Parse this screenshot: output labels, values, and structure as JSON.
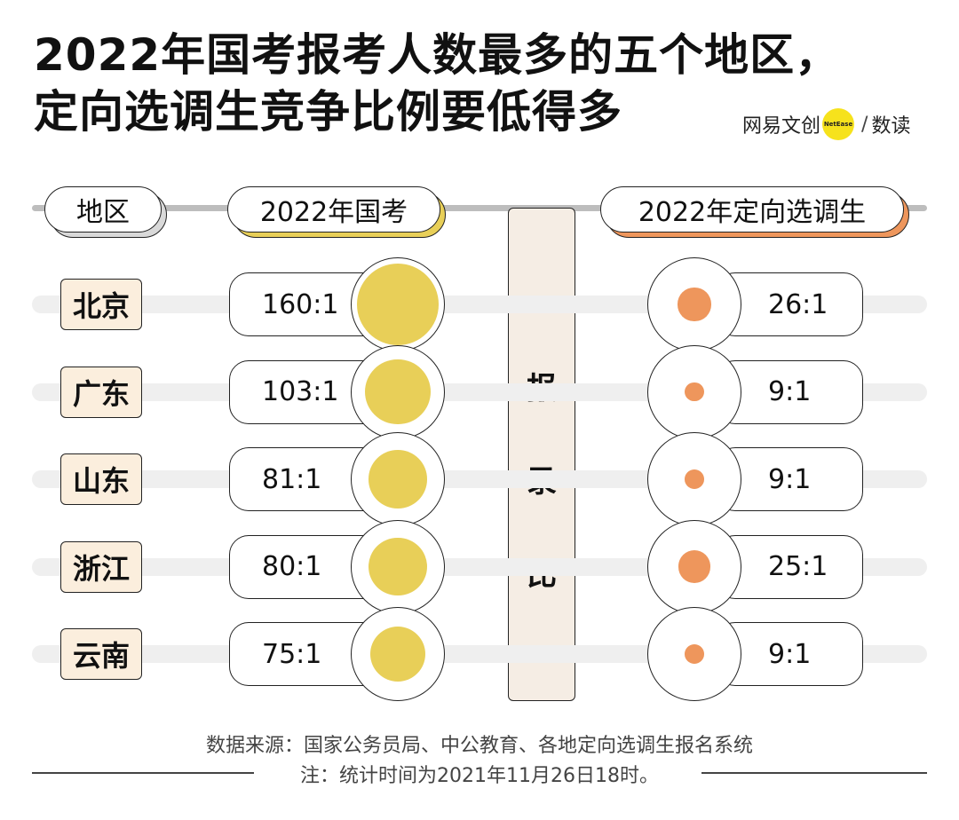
{
  "title": {
    "line1": "2022年国考报考人数最多的五个地区，",
    "line2": "定向选调生竞争比例要低得多"
  },
  "brand": {
    "name": "网易文创",
    "badge": "NetEase",
    "slash": "/",
    "sub": "数读"
  },
  "headers": {
    "region": "地区",
    "guokao": "2022年国考",
    "xuandiao": "2022年定向选调生"
  },
  "center_label": [
    "报",
    "录",
    "比"
  ],
  "colors": {
    "guokao": "#e8cf58",
    "xuandiao": "#ee965c",
    "region_bg": "#fbeedd"
  },
  "chart_data": {
    "type": "bubble-comparison",
    "measure": "报录比",
    "categories": [
      "北京",
      "广东",
      "山东",
      "浙江",
      "云南"
    ],
    "series": [
      {
        "name": "2022年国考",
        "values": [
          160,
          103,
          81,
          80,
          75
        ],
        "labels": [
          "160:1",
          "103:1",
          "81:1",
          "80:1",
          "75:1"
        ]
      },
      {
        "name": "2022年定向选调生",
        "values": [
          26,
          9,
          9,
          25,
          9
        ],
        "labels": [
          "26:1",
          "9:1",
          "9:1",
          "25:1",
          "9:1"
        ]
      }
    ]
  },
  "footer": {
    "source": "数据来源：国家公务员局、中公教育、各地定向选调生报名系统",
    "note": "注：统计时间为2021年11月26日18时。"
  }
}
